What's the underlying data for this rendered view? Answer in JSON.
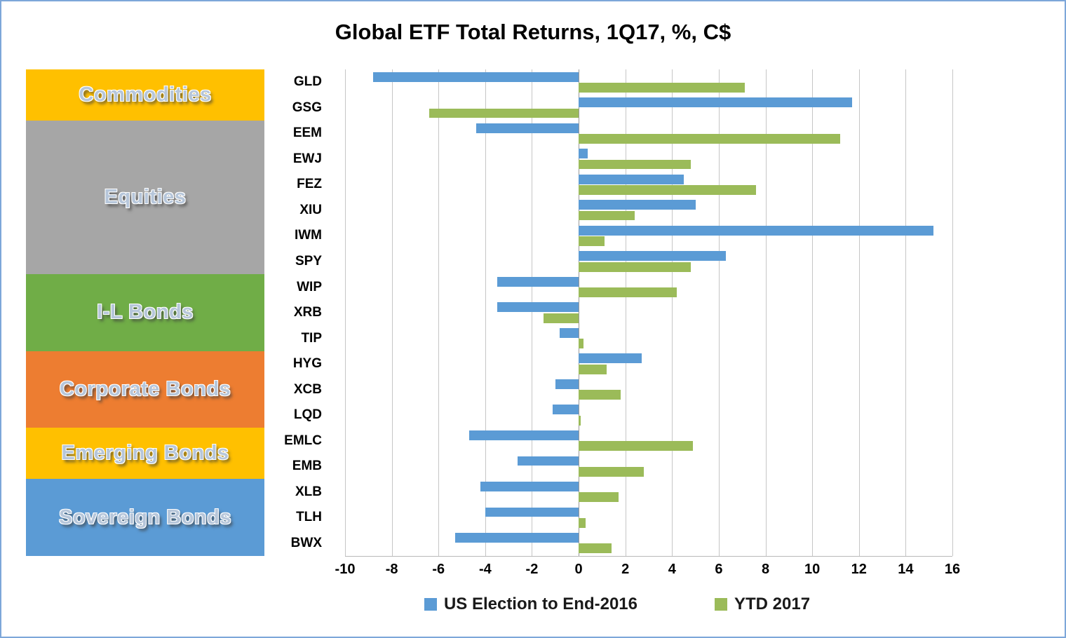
{
  "title": "Global ETF Total Returns, 1Q17, %, C$",
  "legend": [
    {
      "label": "US Election to End-2016",
      "color": "#5B9BD5"
    },
    {
      "label": "YTD 2017",
      "color": "#9BBB59"
    }
  ],
  "categories_panel": [
    {
      "label": "Commodities",
      "color": "#FFC000",
      "rows": 2
    },
    {
      "label": "Equities",
      "color": "#A6A6A6",
      "rows": 6
    },
    {
      "label": "I-L Bonds",
      "color": "#70AD47",
      "rows": 3
    },
    {
      "label": "Corporate Bonds",
      "color": "#ED7D31",
      "rows": 3
    },
    {
      "label": "Emerging Bonds",
      "color": "#FFC000",
      "rows": 2
    },
    {
      "label": "Sovereign Bonds",
      "color": "#5B9BD5",
      "rows": 3
    }
  ],
  "chart_data": {
    "type": "bar",
    "orientation": "horizontal",
    "title": "Global ETF Total Returns, 1Q17, %, C$",
    "categories": [
      "GLD",
      "GSG",
      "EEM",
      "EWJ",
      "FEZ",
      "XIU",
      "IWM",
      "SPY",
      "WIP",
      "XRB",
      "TIP",
      "HYG",
      "XCB",
      "LQD",
      "EMLC",
      "EMB",
      "XLB",
      "TLH",
      "BWX"
    ],
    "series": [
      {
        "name": "US Election to End-2016",
        "color": "#5B9BD5",
        "values": [
          -8.8,
          11.7,
          -4.4,
          0.4,
          4.5,
          5.0,
          15.2,
          6.3,
          -3.5,
          -3.5,
          -0.8,
          2.7,
          -1.0,
          -1.1,
          -4.7,
          -2.6,
          -4.2,
          -4.0,
          -5.3
        ]
      },
      {
        "name": "YTD 2017",
        "color": "#9BBB59",
        "values": [
          7.1,
          -6.4,
          11.2,
          4.8,
          7.6,
          2.4,
          1.1,
          4.8,
          4.2,
          -1.5,
          0.2,
          1.2,
          1.8,
          0.1,
          4.9,
          2.8,
          1.7,
          0.3,
          1.4
        ]
      }
    ],
    "xlim": [
      -10,
      16
    ],
    "xticks": [
      -10,
      -8,
      -6,
      -4,
      -2,
      0,
      2,
      4,
      6,
      8,
      10,
      12,
      14,
      16
    ],
    "xlabel": "",
    "ylabel": "",
    "grid": "vertical",
    "legend_position": "bottom"
  }
}
